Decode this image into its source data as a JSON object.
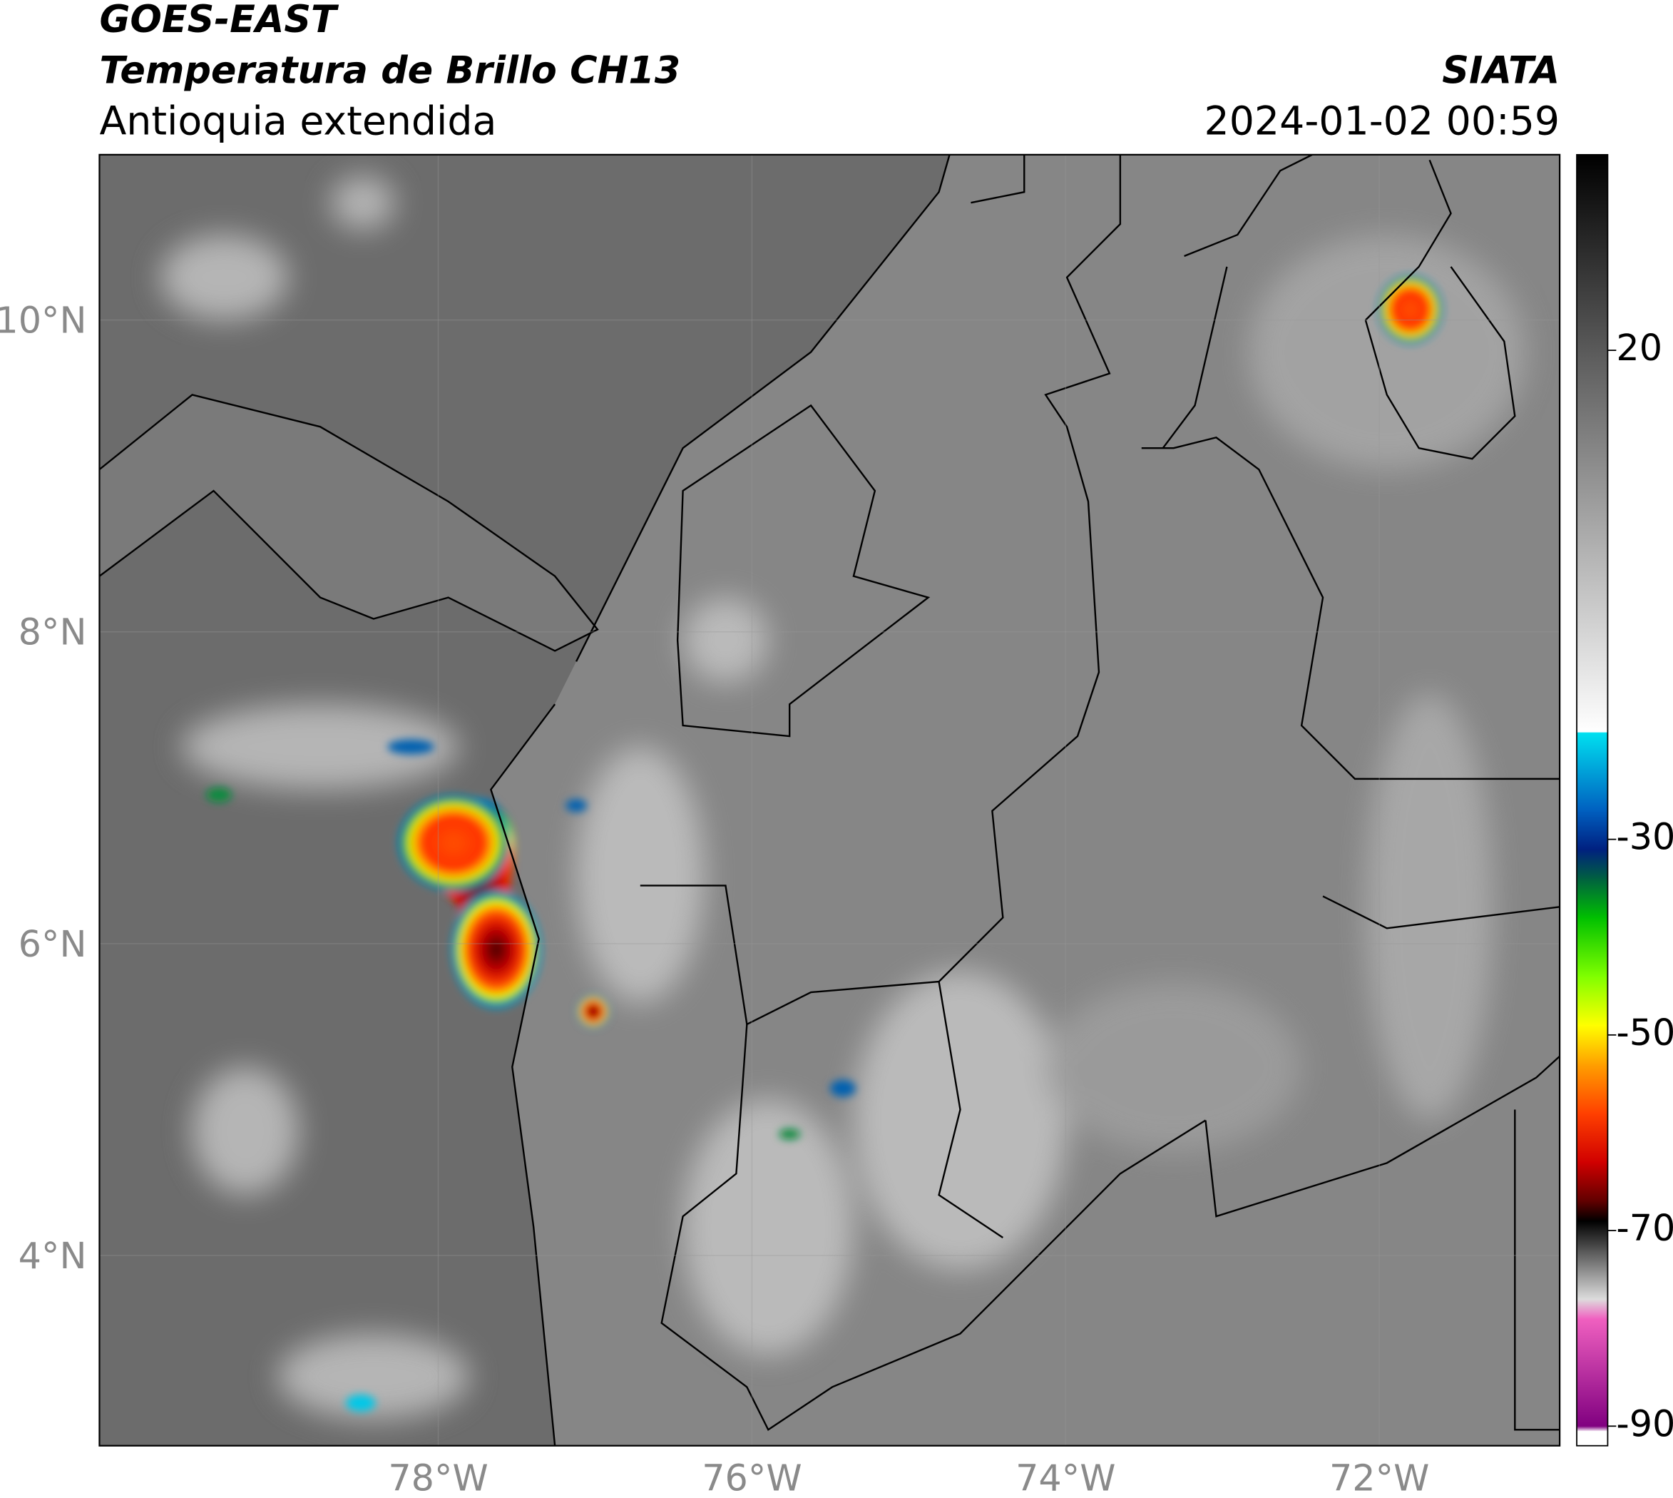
{
  "header": {
    "satellite": "GOES-EAST",
    "product": "Temperatura de Brillo CH13",
    "region": "Antioquia extendida",
    "source": "SIATA",
    "datetime": "2024-01-02 00:59"
  },
  "map": {
    "xlim": [
      -80.16,
      -70.85
    ],
    "ylim": [
      2.78,
      11.06
    ],
    "grid": true,
    "xticks": [
      {
        "value": -78,
        "label": "78°W"
      },
      {
        "value": -76,
        "label": "76°W"
      },
      {
        "value": -74,
        "label": "74°W"
      },
      {
        "value": -72,
        "label": "72°W"
      }
    ],
    "yticks": [
      {
        "value": 4,
        "label": "4°N"
      },
      {
        "value": 6,
        "label": "6°N"
      },
      {
        "value": 8,
        "label": "8°N"
      },
      {
        "value": 10,
        "label": "10°N"
      }
    ]
  },
  "colorbar": {
    "lim": [
      -92,
      40
    ],
    "ticks": [
      20,
      -30,
      -50,
      -70,
      -90
    ],
    "stops": [
      {
        "value": 40,
        "color": "#000000"
      },
      {
        "value": 20,
        "color": "#5a5a5a"
      },
      {
        "value": 0,
        "color": "#b0b0b0"
      },
      {
        "value": -19,
        "color": "#ffffff"
      },
      {
        "value": -19.1,
        "color": "#00e0f0"
      },
      {
        "value": -27,
        "color": "#0060c0"
      },
      {
        "value": -31,
        "color": "#002080"
      },
      {
        "value": -34,
        "color": "#006040"
      },
      {
        "value": -38,
        "color": "#00c000"
      },
      {
        "value": -44,
        "color": "#80ff00"
      },
      {
        "value": -49,
        "color": "#ffff00"
      },
      {
        "value": -53,
        "color": "#ffa000"
      },
      {
        "value": -58,
        "color": "#ff4000"
      },
      {
        "value": -63,
        "color": "#d00000"
      },
      {
        "value": -67,
        "color": "#600000"
      },
      {
        "value": -69,
        "color": "#000000"
      },
      {
        "value": -72,
        "color": "#555555"
      },
      {
        "value": -77,
        "color": "#dddddd"
      },
      {
        "value": -79,
        "color": "#f060c0"
      },
      {
        "value": -90,
        "color": "#800080"
      },
      {
        "value": -90.5,
        "color": "#ffffff"
      },
      {
        "value": -92,
        "color": "#ffffff"
      }
    ]
  }
}
